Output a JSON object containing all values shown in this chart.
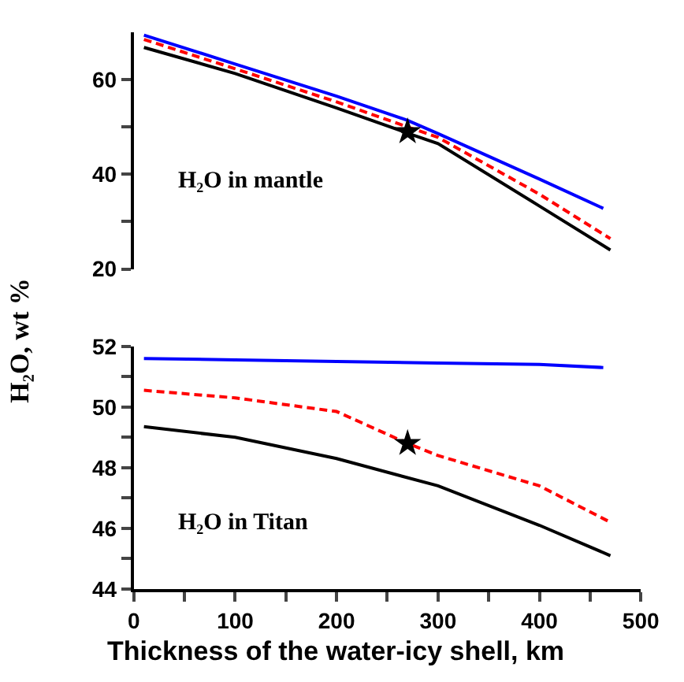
{
  "chart_data": [
    {
      "type": "line",
      "xlim": [
        0,
        500
      ],
      "ylim": [
        20,
        70
      ],
      "yticks": [
        20,
        {
          "value": 30,
          "label": null
        },
        40,
        {
          "value": 50,
          "label": null
        },
        60
      ],
      "tick_labels": "y",
      "annotations": [
        "H₂O in mantle"
      ],
      "series": [
        {
          "color": "#0000ff",
          "line_style": "solid",
          "x": [
            10,
            100,
            200,
            270,
            300,
            400,
            463
          ],
          "values": [
            69.4,
            63.3,
            56.5,
            51.4,
            48.6,
            39,
            32.8
          ]
        },
        {
          "color": "#ff0000",
          "line_style": "dashed",
          "x": [
            10,
            100,
            200,
            270,
            300,
            400,
            470
          ],
          "values": [
            68.5,
            62.3,
            55.3,
            50.0,
            47.8,
            35.8,
            26.4
          ]
        },
        {
          "color": "#000000",
          "line_style": "solid",
          "x": [
            10,
            100,
            200,
            270,
            300,
            400,
            470
          ],
          "values": [
            66.8,
            61.3,
            54.0,
            48.7,
            46.5,
            33.3,
            24
          ]
        },
        {
          "type": "scatter",
          "marker": "star",
          "color": "#000000",
          "x": [
            270
          ],
          "values": [
            49.0
          ]
        }
      ]
    },
    {
      "type": "line",
      "xlim": [
        0,
        500
      ],
      "xticks": [
        0,
        {
          "value": 50,
          "label": null
        },
        100,
        {
          "value": 150,
          "label": null
        },
        200,
        {
          "value": 250,
          "label": null
        },
        300,
        {
          "value": 350,
          "label": null
        },
        400,
        {
          "value": 450,
          "label": null
        },
        500
      ],
      "ylim": [
        44,
        52
      ],
      "yticks": [
        44,
        {
          "value": 45,
          "label": null
        },
        46,
        {
          "value": 47,
          "label": null
        },
        48,
        {
          "value": 49,
          "label": null
        },
        50,
        {
          "value": 51,
          "label": null
        },
        52
      ],
      "xlabel": "Thickness of the water-icy shell, km",
      "ylabel": "H₂O, wt %",
      "annotations": [
        "H₂O in Titan"
      ],
      "series": [
        {
          "color": "#0000ff",
          "line_style": "solid",
          "x": [
            10,
            100,
            200,
            300,
            400,
            463
          ],
          "values": [
            51.6,
            51.55,
            51.5,
            51.45,
            51.4,
            51.3
          ]
        },
        {
          "color": "#ff0000",
          "line_style": "dashed",
          "x": [
            10,
            100,
            200,
            270,
            300,
            400,
            470
          ],
          "values": [
            50.55,
            50.3,
            49.85,
            48.8,
            48.4,
            47.4,
            46.2
          ]
        },
        {
          "color": "#000000",
          "line_style": "solid",
          "x": [
            10,
            100,
            200,
            300,
            400,
            470
          ],
          "values": [
            49.35,
            49.0,
            48.3,
            47.4,
            46.1,
            45.1
          ]
        },
        {
          "type": "scatter",
          "marker": "star",
          "color": "#000000",
          "x": [
            270
          ],
          "values": [
            48.8
          ]
        }
      ]
    }
  ]
}
